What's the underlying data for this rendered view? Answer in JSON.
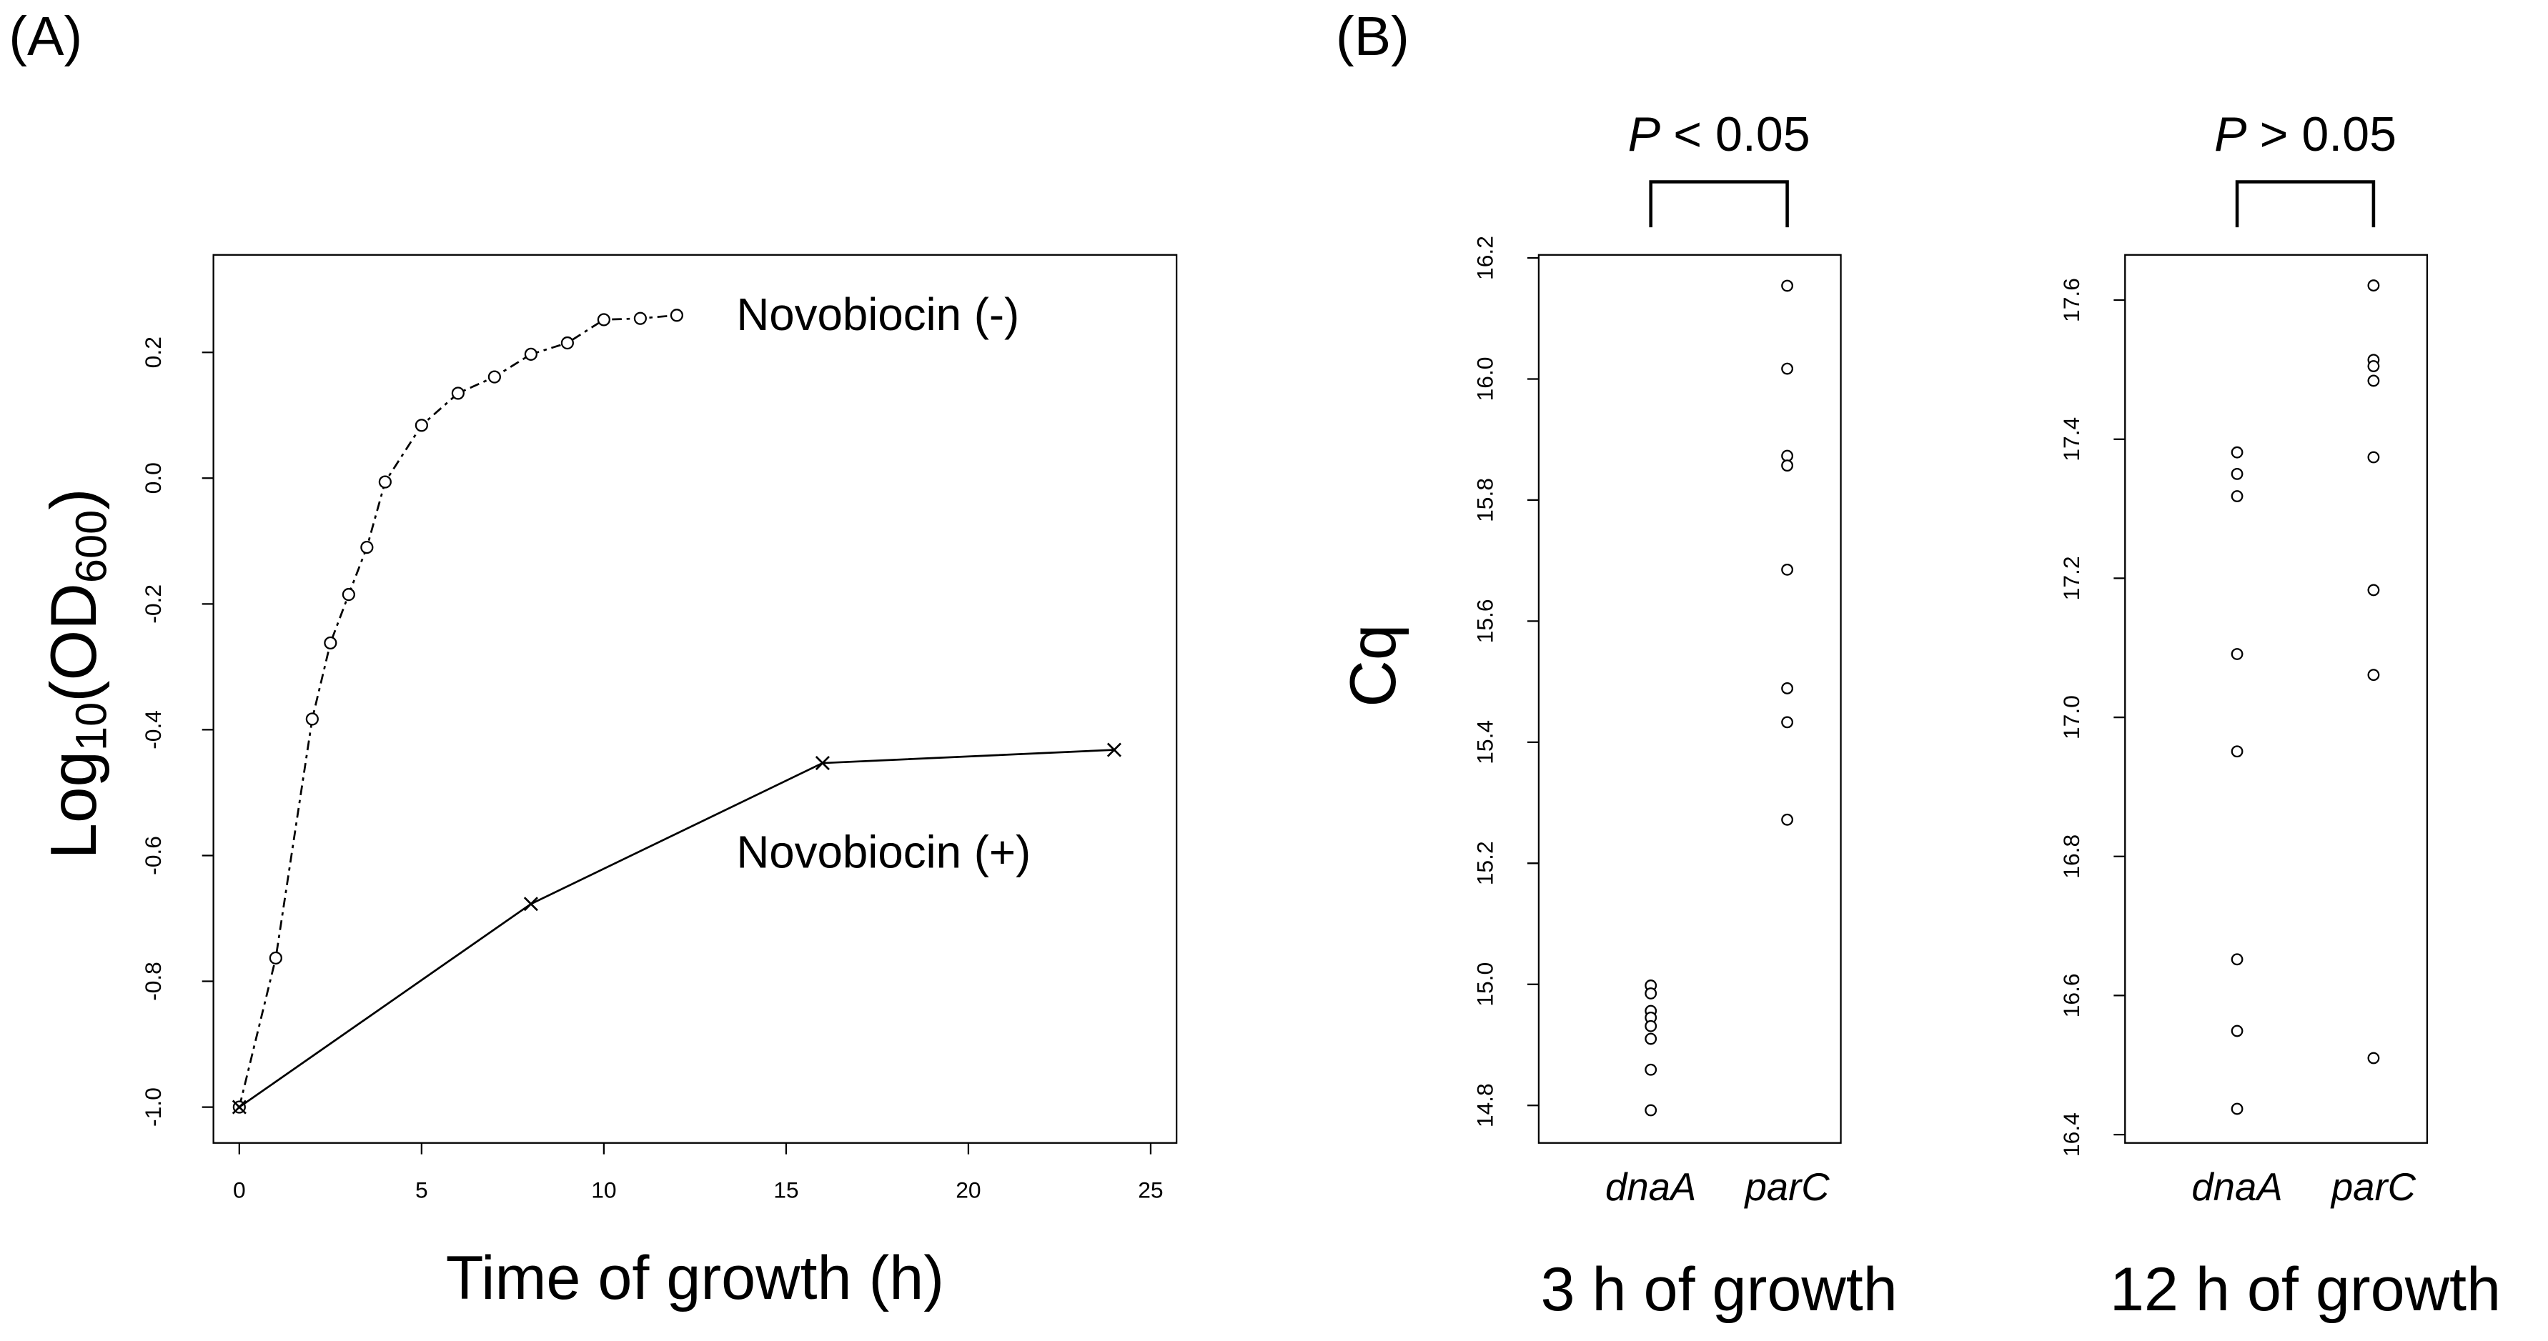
{
  "chart_data": [
    {
      "type": "line",
      "panel_label": "(A)",
      "xlabel": "Time of growth (h)",
      "ylabel": [
        "Log",
        "10",
        "(OD",
        "600",
        ")"
      ],
      "xlim": [
        -0.71,
        25.71
      ],
      "ylim": [
        -1.057,
        0.355
      ],
      "xticks": [
        0,
        5,
        10,
        15,
        20,
        25
      ],
      "yticks": [
        {
          "value": -1,
          "label": "-1.0"
        },
        -0.8,
        -0.6,
        -0.4,
        -0.2,
        {
          "value": 0,
          "label": "0.0"
        },
        0.2
      ],
      "series": [
        {
          "name": "Novobiocin (-)",
          "color": "#000000",
          "marker": "o",
          "dashed": true,
          "x": [
            0,
            1,
            2,
            2.5,
            3,
            3.5,
            4,
            5,
            6,
            7,
            8,
            9,
            10,
            11,
            12
          ],
          "values": [
            -1.0,
            -0.763,
            -0.383,
            -0.262,
            -0.185,
            -0.11,
            -0.006,
            0.084,
            0.135,
            0.161,
            0.197,
            0.215,
            0.252,
            0.254,
            0.259
          ]
        },
        {
          "name": "Novobiocin (+)",
          "color": "#000000",
          "marker": "x",
          "dashed": false,
          "x": [
            0,
            8,
            16,
            24
          ],
          "values": [
            -1.0,
            -0.677,
            -0.453,
            -0.432
          ]
        }
      ]
    },
    {
      "type": "strip",
      "panel_label": "(B)",
      "ylabel": "Cq",
      "xlabel": "3 h of growth",
      "annotation": [
        "P",
        "< 0.05"
      ],
      "categories": [
        "dnaA",
        "parC"
      ],
      "ylim": [
        14.738,
        16.205
      ],
      "yticks": [
        14.8,
        {
          "value": 15,
          "label": "15.0"
        },
        15.2,
        15.4,
        15.6,
        15.8,
        {
          "value": 16,
          "label": "16.0"
        },
        16.2
      ],
      "series": [
        {
          "values": [
            14.998,
            14.985,
            14.956,
            14.945,
            14.931,
            14.91,
            14.859,
            14.792
          ]
        },
        {
          "values": [
            16.154,
            16.017,
            15.873,
            15.857,
            15.685,
            15.489,
            15.433,
            15.272
          ]
        }
      ]
    },
    {
      "type": "strip",
      "xlabel": "12 h of growth",
      "annotation": [
        "P",
        "> 0.05"
      ],
      "categories": [
        "dnaA",
        "parC"
      ],
      "ylim": [
        16.388,
        17.665
      ],
      "yticks": [
        16.4,
        16.6,
        16.8,
        {
          "value": 17,
          "label": "17.0"
        },
        17.2,
        17.4,
        17.6
      ],
      "series": [
        {
          "values": [
            17.381,
            17.35,
            17.318,
            17.091,
            16.951,
            16.652,
            16.549,
            16.437
          ]
        },
        {
          "values": [
            17.621,
            17.514,
            17.505,
            17.484,
            17.374,
            17.183,
            17.061,
            16.51
          ]
        }
      ]
    }
  ]
}
